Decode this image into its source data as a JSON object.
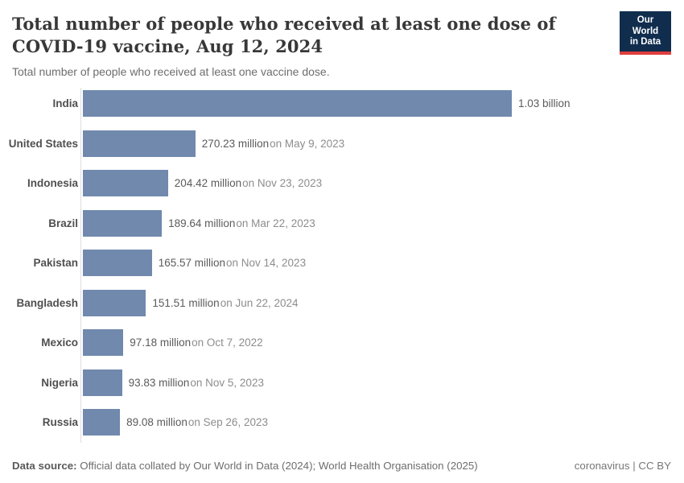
{
  "header": {
    "title": "Total number of people who received at least one dose of COVID-19 vaccine, Aug 12, 2024",
    "subtitle": "Total number of people who received at least one vaccine dose."
  },
  "logo": {
    "line1": "Our World",
    "line2": "in Data",
    "background_color": "#102d4e",
    "accent_color": "#e03e3e"
  },
  "chart_data": {
    "type": "bar",
    "orientation": "horizontal",
    "unit": "people (millions)",
    "xlim": [
      0,
      1030
    ],
    "bar_color": "#7089ad",
    "grid": false,
    "rows": [
      {
        "country": "India",
        "value_millions": 1030,
        "value_label": "1.03 billion",
        "date_label": ""
      },
      {
        "country": "United States",
        "value_millions": 270.23,
        "value_label": "270.23 million",
        "date_label": "on May 9, 2023"
      },
      {
        "country": "Indonesia",
        "value_millions": 204.42,
        "value_label": "204.42 million",
        "date_label": "on Nov 23, 2023"
      },
      {
        "country": "Brazil",
        "value_millions": 189.64,
        "value_label": "189.64 million",
        "date_label": "on Mar 22, 2023"
      },
      {
        "country": "Pakistan",
        "value_millions": 165.57,
        "value_label": "165.57 million",
        "date_label": "on Nov 14, 2023"
      },
      {
        "country": "Bangladesh",
        "value_millions": 151.51,
        "value_label": "151.51 million",
        "date_label": "on Jun 22, 2024"
      },
      {
        "country": "Mexico",
        "value_millions": 97.18,
        "value_label": "97.18 million",
        "date_label": "on Oct 7, 2022"
      },
      {
        "country": "Nigeria",
        "value_millions": 93.83,
        "value_label": "93.83 million",
        "date_label": "on Nov 5, 2023"
      },
      {
        "country": "Russia",
        "value_millions": 89.08,
        "value_label": "89.08 million",
        "date_label": "on Sep 26, 2023"
      }
    ]
  },
  "footer": {
    "datasource_label": "Data source:",
    "datasource_text": "Official data collated by Our World in Data (2024); World Health Organisation (2025)",
    "note_right": "coronavirus | CC BY"
  }
}
